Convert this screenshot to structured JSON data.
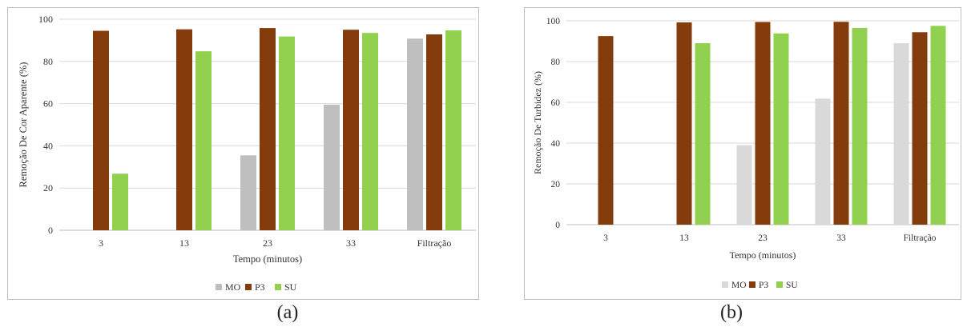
{
  "colors": {
    "MO": "#bfbfbf",
    "MO_b": "#d9d9d9",
    "P3": "#843c0c",
    "SU": "#92d050",
    "grid": "#d9d9d9",
    "axis": "#bfbfbf"
  },
  "chart_data": [
    {
      "type": "bar",
      "panel_label": "(a)",
      "title": "",
      "xlabel": "Tempo (minutos)",
      "ylabel": "Remoção De Cor Aparente (%)",
      "ylim": [
        0,
        100
      ],
      "yticks": [
        "0",
        "20",
        "40",
        "60",
        "80",
        "100"
      ],
      "grid": true,
      "legend_position": "bottom",
      "categories": [
        "3",
        "13",
        "23",
        "33",
        "Filtração"
      ],
      "series": [
        {
          "name": "MO",
          "values": [
            null,
            null,
            35.5,
            59.5,
            90.8
          ]
        },
        {
          "name": "P3",
          "values": [
            94.5,
            95.2,
            95.8,
            95.0,
            92.8
          ]
        },
        {
          "name": "SU",
          "values": [
            26.8,
            84.8,
            91.8,
            93.5,
            94.7
          ]
        }
      ]
    },
    {
      "type": "bar",
      "panel_label": "(b)",
      "title": "",
      "xlabel": "Tempo (minutos)",
      "ylabel": "Remoção De Turbidez (%)",
      "ylim": [
        0,
        100
      ],
      "yticks": [
        "0",
        "20",
        "40",
        "60",
        "80",
        "100"
      ],
      "grid": true,
      "legend_position": "bottom",
      "categories": [
        "3",
        "13",
        "23",
        "33",
        "Filtração"
      ],
      "series": [
        {
          "name": "MO",
          "values": [
            null,
            null,
            39.0,
            61.8,
            89.0
          ]
        },
        {
          "name": "P3",
          "values": [
            92.5,
            99.2,
            99.4,
            99.5,
            94.4
          ]
        },
        {
          "name": "SU",
          "values": [
            null,
            89.0,
            93.8,
            96.5,
            97.5
          ]
        }
      ]
    }
  ]
}
